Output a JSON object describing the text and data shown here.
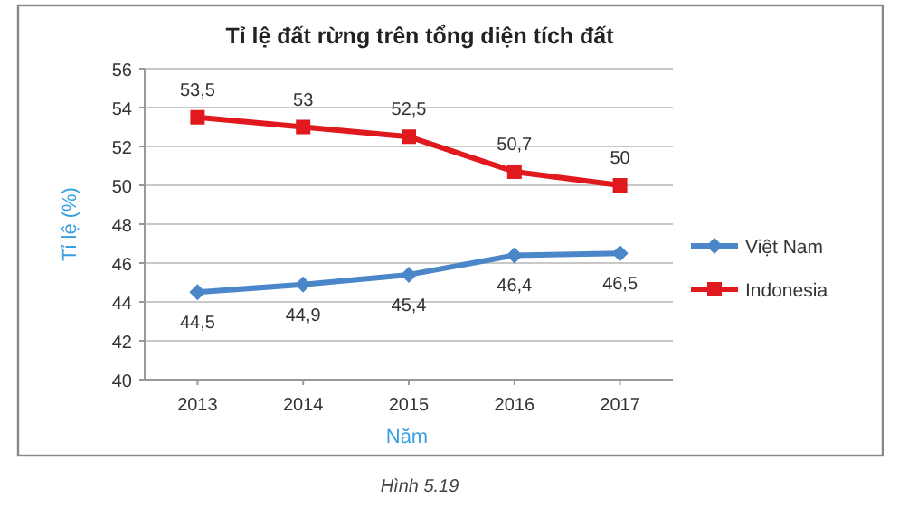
{
  "chart_data": {
    "type": "line",
    "title": "Tỉ lệ đất rừng trên tổng diện tích đất",
    "xlabel": "Năm",
    "ylabel": "Tỉ lệ (%)",
    "categories": [
      "2013",
      "2014",
      "2015",
      "2016",
      "2017"
    ],
    "series": [
      {
        "name": "Việt Nam",
        "color": "#4a86c8",
        "marker": "diamond",
        "values": [
          44.5,
          44.9,
          45.4,
          46.4,
          46.5
        ],
        "value_labels": [
          "44,5",
          "44,9",
          "45,4",
          "46,4",
          "46,5"
        ]
      },
      {
        "name": "Indonesia",
        "color": "#e0191e",
        "marker": "square",
        "values": [
          53.5,
          53,
          52.5,
          50.7,
          50
        ],
        "value_labels": [
          "53,5",
          "53",
          "52,5",
          "50,7",
          "50"
        ]
      }
    ],
    "ylim": [
      40,
      56
    ],
    "yticks": [
      40,
      42,
      44,
      46,
      48,
      50,
      52,
      54,
      56
    ],
    "grid": "y",
    "legend": "right",
    "line_style": "solid",
    "annotations": [
      "Hình 5.19"
    ]
  }
}
